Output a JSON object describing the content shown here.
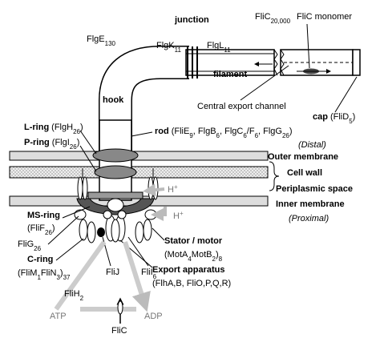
{
  "labels": {
    "junction": [
      "junction"
    ],
    "flgk": [
      "FlgK",
      {
        "sub": "11"
      }
    ],
    "flgl": [
      "FlgL",
      {
        "sub": "11"
      }
    ],
    "flic_count": [
      "FliC",
      {
        "sub": "20,000"
      }
    ],
    "flic_monomer": [
      "FliC monomer"
    ],
    "flge": [
      "FlgE",
      {
        "sub": "130"
      }
    ],
    "filament": [
      "filament"
    ],
    "hook": [
      "hook"
    ],
    "channel": [
      "Central export channel"
    ],
    "cap_name": [
      "cap"
    ],
    "cap_parts": [
      "(FliD",
      {
        "sub": "5"
      },
      ")"
    ],
    "lring_name": [
      "L-ring"
    ],
    "lring_parts": [
      "(FlgH",
      {
        "sub": "26"
      },
      ")"
    ],
    "pring_name": [
      "P-ring"
    ],
    "pring_parts": [
      "(FlgI",
      {
        "sub": "26"
      },
      ")"
    ],
    "rod_name": [
      "rod"
    ],
    "rod_parts": [
      "(FliE",
      {
        "sub": "9"
      },
      ", FlgB",
      {
        "sub": "6"
      },
      ", FlgC",
      {
        "sub": "6"
      },
      "/F",
      {
        "sub": "6"
      },
      ", FlgG",
      {
        "sub": "26"
      },
      ")"
    ],
    "distal": [
      "(Distal)"
    ],
    "outer": [
      "Outer membrane"
    ],
    "cellwall": [
      "Cell wall"
    ],
    "periplasmic": [
      "Periplasmic space"
    ],
    "inner": [
      "Inner membrane"
    ],
    "proximal": [
      "(Proximal)"
    ],
    "hplus_top": [
      "H",
      {
        "sup": "+"
      }
    ],
    "hplus_bottom": [
      "H",
      {
        "sup": "+"
      }
    ],
    "ms_name": [
      "MS-ring"
    ],
    "ms_parts": [
      "(FliF",
      {
        "sub": "26"
      },
      ")"
    ],
    "flig": [
      "FliG",
      {
        "sub": "26"
      }
    ],
    "c_name": [
      "C-ring"
    ],
    "c_parts": [
      "(FliM",
      {
        "sub": "1"
      },
      "FliN",
      {
        "sub": "3"
      },
      ")",
      {
        "sub": "37"
      }
    ],
    "stator_name": [
      "Stator / motor"
    ],
    "stator_parts": [
      "(MotA",
      {
        "sub": "4"
      },
      "MotB",
      {
        "sub": "2"
      },
      ")",
      {
        "sub": "8"
      }
    ],
    "export_name": [
      "Export apparatus"
    ],
    "export_parts": [
      "(FlhA,B, FliO,P,Q,R)"
    ],
    "flij": [
      "FliJ"
    ],
    "flii": [
      "FliI",
      {
        "sub": "6"
      }
    ],
    "flih": [
      "FliH",
      {
        "sub": "2"
      }
    ],
    "atp": [
      "ATP"
    ],
    "adp": [
      "ADP"
    ],
    "flic_bottom": [
      "FliC"
    ]
  }
}
